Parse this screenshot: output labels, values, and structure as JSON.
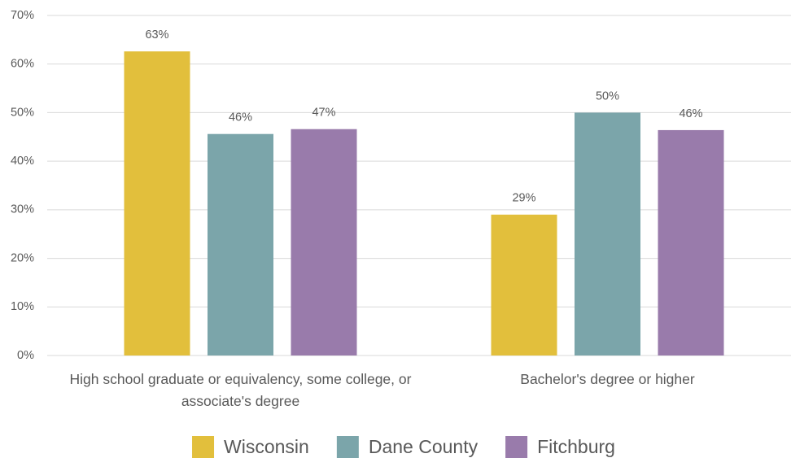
{
  "chart_data": {
    "type": "bar",
    "categories": [
      "High school graduate or equivalency, some college, or associate's degree",
      "Bachelor's degree or higher"
    ],
    "series": [
      {
        "name": "Wisconsin",
        "color": "#e2bf3c",
        "values": [
          62.6,
          29.0
        ],
        "value_labels": [
          "63%",
          "29%"
        ]
      },
      {
        "name": "Dane County",
        "color": "#7ba5aa",
        "values": [
          45.6,
          50.0
        ],
        "value_labels": [
          "46%",
          "50%"
        ]
      },
      {
        "name": "Fitchburg",
        "color": "#997bab",
        "values": [
          46.6,
          46.4
        ],
        "value_labels": [
          "47%",
          "46%"
        ]
      }
    ],
    "ylim": [
      0,
      70
    ],
    "yticks": [
      {
        "value": 0,
        "label": "0%"
      },
      {
        "value": 10,
        "label": "10%"
      },
      {
        "value": 20,
        "label": "20%"
      },
      {
        "value": 30,
        "label": "30%"
      },
      {
        "value": 40,
        "label": "40%"
      },
      {
        "value": 50,
        "label": "50%"
      },
      {
        "value": 60,
        "label": "60%"
      },
      {
        "value": 70,
        "label": "70%"
      }
    ],
    "grid": true,
    "legend": "bottom"
  }
}
